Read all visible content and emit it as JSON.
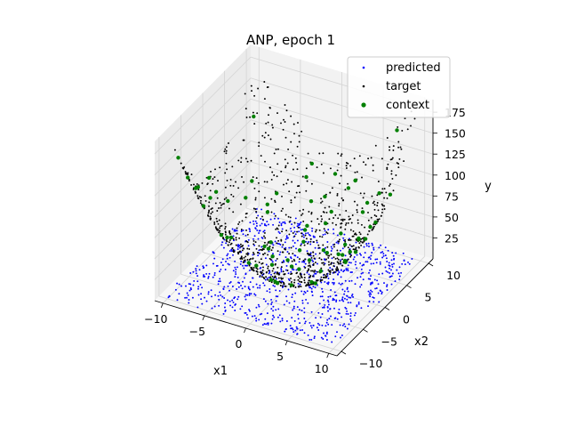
{
  "chart_data": {
    "type": "scatter",
    "title": "ANP, epoch 1",
    "xlabel": "x1",
    "ylabel": "x2",
    "zlabel": "y",
    "xlim": [
      -11,
      11
    ],
    "ylim": [
      -11,
      11
    ],
    "zlim": [
      0,
      190
    ],
    "x_ticks": [
      -10,
      -5,
      0,
      5,
      10
    ],
    "x_tick_labels": [
      "−10",
      "−5",
      "0",
      "5",
      "10"
    ],
    "y_ticks": [
      -10,
      -5,
      0,
      5,
      10
    ],
    "y_tick_labels": [
      "−10",
      "−5",
      "0",
      "5",
      "10"
    ],
    "z_ticks": [
      25,
      50,
      75,
      100,
      125,
      150,
      175
    ],
    "z_tick_labels": [
      "25",
      "50",
      "75",
      "100",
      "125",
      "150",
      "175"
    ],
    "legend_position": "top-right",
    "series": [
      {
        "name": "predicted",
        "color": "#0000ff",
        "marker": "small-dot",
        "model": "predicted values near zero spread uniformly over the domain",
        "count": 900,
        "z_range": [
          0,
          8
        ]
      },
      {
        "name": "target",
        "color": "#000000",
        "marker": "small-dot",
        "model": "y = x1^2 + x2^2",
        "count": 900
      },
      {
        "name": "context",
        "color": "#008000",
        "marker": "dot",
        "model": "y = x1^2 + x2^2",
        "count": 70
      }
    ]
  }
}
